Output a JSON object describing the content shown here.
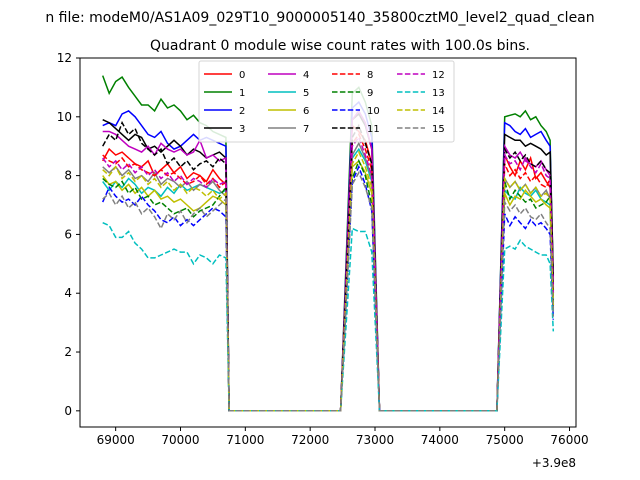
{
  "suptitle": "n file: modeM0/AS1A09_029T10_9000005140_35800cztM0_level2_quad_clean",
  "chart_data": {
    "type": "line",
    "title": "Quadrant 0 module wise count rates with 100.0s bins.",
    "xlabel": "",
    "ylabel": "",
    "x_offset_label": "+3.9e8",
    "xlim": [
      68450,
      76100
    ],
    "ylim": [
      -0.55,
      12
    ],
    "xticks": [
      69000,
      70000,
      71000,
      72000,
      73000,
      74000,
      75000,
      76000
    ],
    "yticks": [
      0,
      2,
      4,
      6,
      8,
      10,
      12
    ],
    "grid": false,
    "legend": {
      "placement": "top-center",
      "columns": 4
    },
    "series": [
      {
        "name": "0",
        "color": "#ff0000",
        "dash": "solid",
        "seg1": [
          8.5,
          8.9,
          8.7,
          8.8,
          8.6,
          8.4,
          8.3,
          8.5,
          8.0,
          8.2,
          8.4,
          8.1,
          8.3,
          7.9,
          8.1,
          8.0,
          7.8,
          8.2,
          7.9,
          7.7
        ],
        "peak": [
          9.7,
          9.5,
          9.2,
          8.4
        ],
        "seg3": [
          8.7,
          8.3,
          8.0,
          8.5,
          8.2,
          8.6,
          7.9,
          8.1,
          7.8,
          7.6,
          4.4
        ]
      },
      {
        "name": "1",
        "color": "#008000",
        "dash": "solid",
        "seg1": [
          11.4,
          10.8,
          11.2,
          11.35,
          11.0,
          10.7,
          10.4,
          10.4,
          10.2,
          10.6,
          10.3,
          10.4,
          10.2,
          9.9,
          10.05,
          9.8,
          9.7,
          9.5,
          9.4,
          9.3
        ],
        "peak": [
          10.8,
          11.0,
          10.5,
          9.7
        ],
        "seg3": [
          10.0,
          10.05,
          10.1,
          10.0,
          10.2,
          9.9,
          10.0,
          9.7,
          9.5,
          9.2,
          4.5
        ]
      },
      {
        "name": "2",
        "color": "#0000ff",
        "dash": "solid",
        "seg1": [
          9.7,
          9.8,
          9.7,
          10.1,
          10.2,
          10.0,
          9.7,
          9.4,
          9.3,
          9.5,
          9.1,
          8.9,
          9.0,
          9.2,
          9.4,
          9.2,
          9.3,
          9.2,
          9.1,
          9.0
        ],
        "peak": [
          10.3,
          10.5,
          10.1,
          9.3
        ],
        "seg3": [
          9.8,
          9.7,
          9.5,
          9.4,
          9.6,
          9.3,
          9.4,
          9.5,
          9.2,
          9.0,
          4.3
        ]
      },
      {
        "name": "3",
        "color": "#000000",
        "dash": "solid",
        "seg1": [
          9.9,
          9.8,
          9.6,
          9.4,
          9.2,
          9.4,
          9.3,
          8.9,
          9.0,
          8.8,
          9.0,
          9.2,
          9.0,
          8.7,
          8.9,
          8.8,
          8.6,
          8.7,
          8.8,
          8.6
        ],
        "peak": [
          9.9,
          10.1,
          9.7,
          8.9
        ],
        "seg3": [
          9.4,
          9.3,
          9.2,
          9.2,
          9.0,
          9.1,
          9.0,
          8.9,
          8.7,
          8.8,
          4.6
        ]
      },
      {
        "name": "4",
        "color": "#bf00bf",
        "dash": "solid",
        "seg1": [
          9.5,
          9.5,
          9.4,
          9.2,
          9.0,
          8.9,
          8.8,
          9.0,
          8.7,
          9.1,
          8.9,
          8.8,
          8.9,
          8.7,
          8.8,
          9.2,
          8.6,
          8.7,
          8.5,
          8.6
        ],
        "peak": [
          9.9,
          10.2,
          9.8,
          8.9
        ],
        "seg3": [
          9.0,
          8.7,
          8.6,
          8.8,
          8.5,
          8.4,
          8.3,
          8.5,
          8.2,
          8.0,
          4.2
        ]
      },
      {
        "name": "5",
        "color": "#00bfbf",
        "dash": "solid",
        "seg1": [
          7.8,
          7.5,
          7.8,
          7.6,
          7.9,
          7.7,
          7.4,
          7.6,
          7.5,
          7.3,
          7.6,
          7.4,
          7.7,
          7.5,
          7.6,
          7.7,
          7.6,
          7.5,
          7.4,
          7.5
        ],
        "peak": [
          8.6,
          8.9,
          8.5,
          7.8
        ],
        "seg3": [
          7.5,
          7.3,
          7.2,
          7.6,
          7.4,
          7.3,
          7.5,
          7.2,
          7.1,
          7.0,
          3.4
        ]
      },
      {
        "name": "6",
        "color": "#bfbf00",
        "dash": "solid",
        "seg1": [
          8.0,
          7.7,
          7.8,
          7.5,
          7.7,
          7.4,
          7.6,
          7.3,
          7.5,
          7.2,
          7.3,
          7.1,
          7.2,
          7.0,
          6.8,
          6.9,
          7.1,
          7.3,
          7.2,
          7.0
        ],
        "peak": [
          8.3,
          8.5,
          8.1,
          7.4
        ],
        "seg3": [
          7.4,
          7.0,
          7.3,
          7.2,
          7.5,
          7.3,
          7.1,
          7.2,
          7.0,
          6.9,
          3.5
        ]
      },
      {
        "name": "7",
        "color": "#808080",
        "dash": "solid",
        "seg1": [
          8.3,
          8.1,
          8.3,
          8.0,
          8.2,
          7.9,
          8.0,
          7.8,
          8.1,
          7.7,
          7.9,
          7.8,
          7.6,
          7.8,
          7.5,
          7.7,
          7.6,
          7.8,
          7.5,
          7.3
        ],
        "peak": [
          8.7,
          9.1,
          8.6,
          7.9
        ],
        "seg3": [
          7.9,
          7.6,
          7.8,
          7.5,
          7.7,
          7.4,
          7.6,
          7.3,
          7.5,
          7.2,
          3.6
        ]
      },
      {
        "name": "8",
        "color": "#ff0000",
        "dash": "dashed",
        "seg1": [
          8.7,
          8.5,
          8.4,
          8.6,
          8.3,
          8.4,
          8.2,
          8.1,
          8.0,
          8.2,
          8.0,
          8.1,
          7.9,
          7.7,
          7.8,
          8.0,
          7.7,
          7.9,
          7.6,
          7.8
        ],
        "peak": [
          9.1,
          9.4,
          8.9,
          8.2
        ],
        "seg3": [
          8.4,
          8.0,
          8.2,
          7.9,
          8.1,
          7.8,
          8.0,
          7.7,
          7.6,
          7.9,
          4.0
        ]
      },
      {
        "name": "9",
        "color": "#008000",
        "dash": "dashed",
        "seg1": [
          7.9,
          7.7,
          7.6,
          7.8,
          7.4,
          7.6,
          7.2,
          7.3,
          7.0,
          7.1,
          6.9,
          6.7,
          6.8,
          6.9,
          6.6,
          6.8,
          6.9,
          7.0,
          7.3,
          7.6
        ],
        "peak": [
          7.9,
          8.5,
          8.0,
          7.0
        ],
        "seg3": [
          7.8,
          7.2,
          7.5,
          7.3,
          7.1,
          7.2,
          6.9,
          7.0,
          7.1,
          7.3,
          3.7
        ]
      },
      {
        "name": "10",
        "color": "#0000ff",
        "dash": "dashed",
        "seg1": [
          7.1,
          7.6,
          7.3,
          7.1,
          7.2,
          7.0,
          7.3,
          7.0,
          6.8,
          6.5,
          6.4,
          6.6,
          6.3,
          6.5,
          6.3,
          6.5,
          6.7,
          6.9,
          6.8,
          6.6
        ],
        "peak": [
          7.8,
          8.3,
          7.7,
          6.8
        ],
        "seg3": [
          6.7,
          6.3,
          6.6,
          6.4,
          6.2,
          6.5,
          6.3,
          6.4,
          6.2,
          6.0,
          3.1
        ]
      },
      {
        "name": "11",
        "color": "#000000",
        "dash": "dashed",
        "seg1": [
          9.0,
          9.4,
          9.2,
          9.8,
          9.4,
          9.6,
          9.1,
          8.9,
          8.7,
          8.9,
          8.4,
          8.6,
          8.3,
          8.5,
          8.2,
          8.4,
          8.5,
          8.3,
          8.6,
          8.4
        ],
        "peak": [
          9.3,
          9.7,
          9.1,
          8.4
        ],
        "seg3": [
          8.9,
          8.6,
          8.8,
          8.5,
          8.7,
          8.4,
          8.3,
          8.5,
          8.2,
          8.1,
          4.1
        ]
      },
      {
        "name": "12",
        "color": "#bf00bf",
        "dash": "dashed",
        "seg1": [
          8.6,
          8.3,
          8.5,
          8.2,
          8.4,
          8.1,
          8.3,
          8.0,
          8.2,
          7.9,
          8.1,
          7.8,
          8.0,
          7.7,
          7.9,
          7.8,
          7.6,
          7.9,
          7.7,
          7.8
        ],
        "peak": [
          9.0,
          9.3,
          8.7,
          8.0
        ],
        "seg3": [
          8.7,
          8.4,
          8.5,
          8.2,
          8.6,
          8.3,
          8.1,
          8.4,
          8.0,
          7.9,
          4.0
        ]
      },
      {
        "name": "13",
        "color": "#00bfbf",
        "dash": "dashed",
        "seg1": [
          6.4,
          6.3,
          5.9,
          5.9,
          6.1,
          5.7,
          5.5,
          5.2,
          5.2,
          5.3,
          5.4,
          5.5,
          5.4,
          5.4,
          5.0,
          5.3,
          5.2,
          5.0,
          5.3,
          5.2
        ],
        "peak": [
          6.2,
          6.1,
          6.1,
          5.4
        ],
        "seg3": [
          5.5,
          5.6,
          5.5,
          5.8,
          5.6,
          5.5,
          5.4,
          5.3,
          5.3,
          5.0,
          2.7
        ]
      },
      {
        "name": "14",
        "color": "#bfbf00",
        "dash": "dashed",
        "seg1": [
          8.2,
          8.0,
          8.3,
          7.9,
          8.1,
          7.8,
          8.0,
          7.7,
          7.9,
          7.6,
          7.8,
          7.5,
          7.7,
          7.4,
          7.6,
          7.5,
          7.3,
          7.5,
          7.2,
          7.4
        ],
        "peak": [
          8.4,
          8.8,
          8.3,
          7.6
        ],
        "seg3": [
          7.9,
          7.6,
          7.8,
          7.5,
          7.7,
          7.4,
          7.6,
          7.3,
          7.4,
          7.2,
          3.6
        ]
      },
      {
        "name": "15",
        "color": "#808080",
        "dash": "dashed",
        "seg1": [
          7.2,
          7.4,
          7.0,
          7.3,
          6.9,
          7.1,
          6.7,
          6.9,
          6.6,
          6.2,
          6.7,
          6.5,
          6.8,
          6.4,
          6.7,
          6.9,
          6.6,
          6.8,
          7.0,
          7.2
        ],
        "peak": [
          7.7,
          8.1,
          7.6,
          6.9
        ],
        "seg3": [
          7.1,
          6.8,
          7.0,
          6.7,
          6.9,
          6.6,
          6.5,
          6.7,
          6.4,
          6.2,
          3.2
        ]
      }
    ]
  }
}
